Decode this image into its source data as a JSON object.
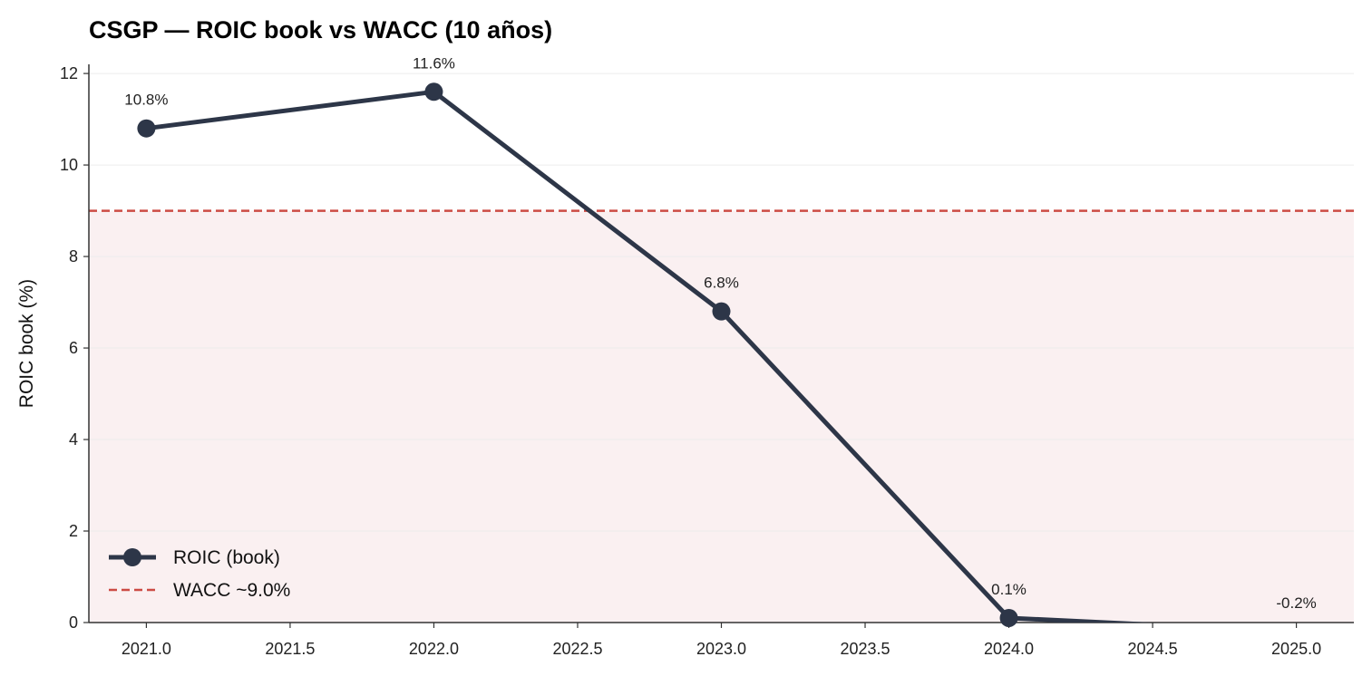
{
  "chart_data": {
    "type": "line",
    "title": "CSGP — ROIC book vs WACC (10 años)",
    "xlabel": "",
    "ylabel": "ROIC book (%)",
    "xlim": [
      2020.8,
      2025.2
    ],
    "ylim": [
      0,
      12.2
    ],
    "xticks": [
      2021.0,
      2021.5,
      2022.0,
      2022.5,
      2023.0,
      2023.5,
      2024.0,
      2024.5,
      2025.0
    ],
    "xtick_labels": [
      "2021.0",
      "2021.5",
      "2022.0",
      "2022.5",
      "2023.0",
      "2023.5",
      "2024.0",
      "2024.5",
      "2025.0"
    ],
    "yticks": [
      0,
      2,
      4,
      6,
      8,
      10,
      12
    ],
    "ytick_labels": [
      "0",
      "2",
      "4",
      "6",
      "8",
      "10",
      "12"
    ],
    "grid": "horizontal",
    "series": [
      {
        "name": "ROIC (book)",
        "x": [
          2021,
          2022,
          2023,
          2024,
          2025
        ],
        "y": [
          10.8,
          11.6,
          6.8,
          0.1,
          -0.2
        ],
        "labels": [
          "10.8%",
          "11.6%",
          "6.8%",
          "0.1%",
          "-0.2%"
        ],
        "color": "#2d3648",
        "marker": "circle"
      }
    ],
    "reference_line": {
      "name": "WACC ~9.0%",
      "y": 9.0,
      "color": "#cc4b44",
      "style": "dashed",
      "shade_below": "#faf0f1"
    },
    "legend": {
      "placement": "lower-left",
      "entries": [
        "ROIC (book)",
        "WACC ~9.0%"
      ]
    }
  }
}
